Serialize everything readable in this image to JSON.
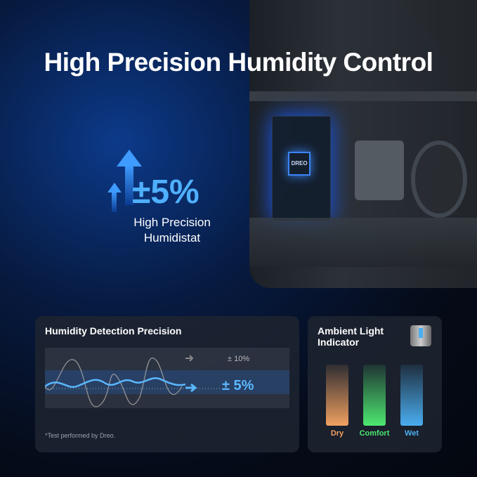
{
  "title": "High Precision Humidity Control",
  "device": {
    "chip_logo": "DREO"
  },
  "precision": {
    "value": "±5%",
    "line1": "High Precision",
    "line2": "Humidistat"
  },
  "detection": {
    "heading": "Humidity Detection Precision",
    "standard_label": "± 10%",
    "dreo_label": "± 5%",
    "footnote": "*Test performed by Dreo."
  },
  "indicator": {
    "heading_line1": "Ambient Light",
    "heading_line2": "Indicator",
    "levels": [
      {
        "label": "Dry",
        "color": "#f0a060"
      },
      {
        "label": "Comfort",
        "color": "#4de870"
      },
      {
        "label": "Wet",
        "color": "#4aaef0"
      }
    ]
  }
}
